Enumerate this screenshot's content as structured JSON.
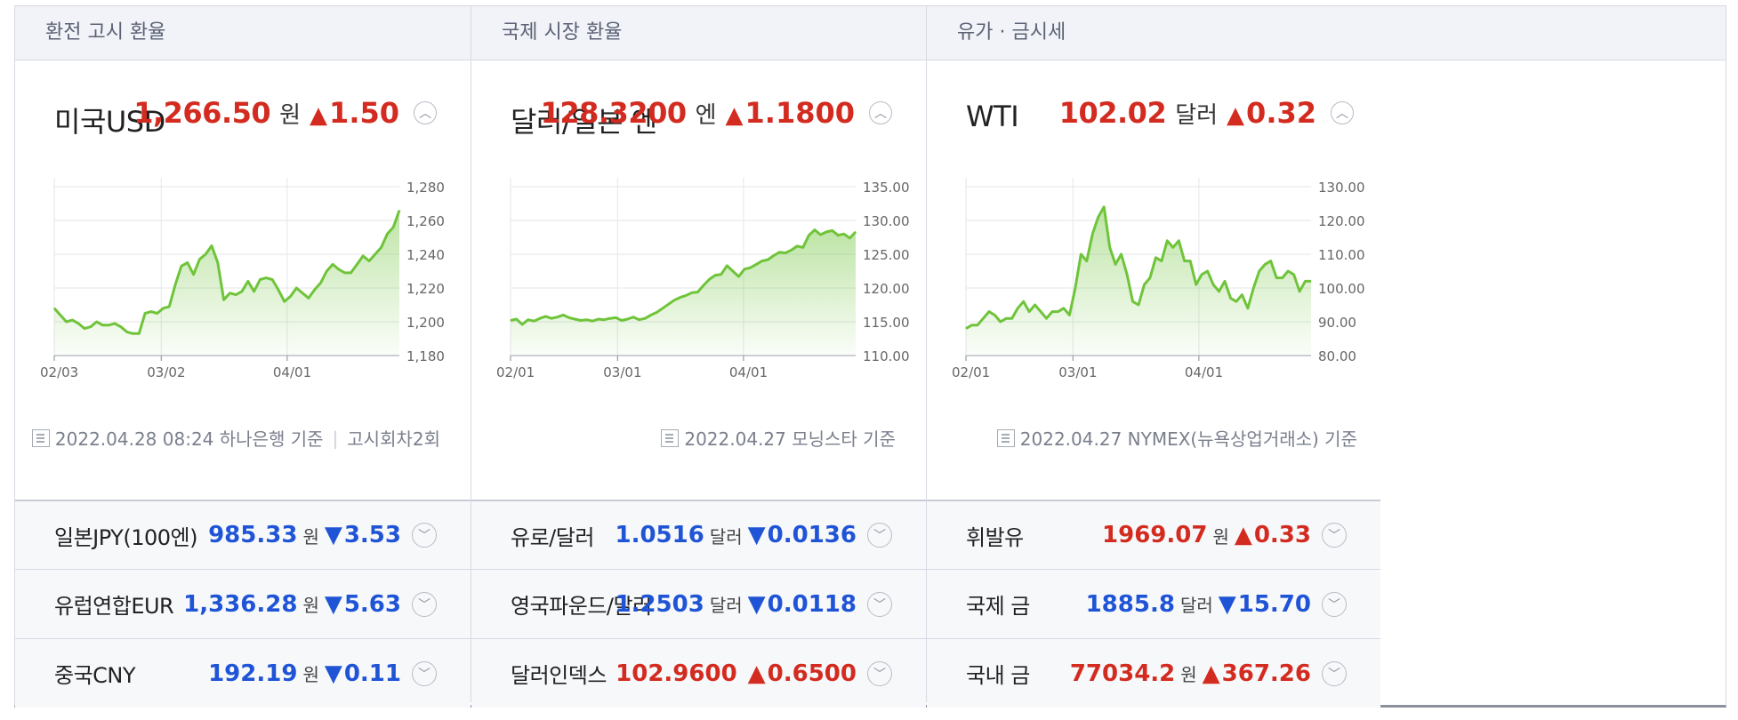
{
  "colors": {
    "up": "#d32b1f",
    "down": "#1f54d6",
    "line": "#6fc43a"
  },
  "columns": [
    {
      "header": "환전 고시 환율",
      "main": {
        "name": "미국USD",
        "value": "1,266.50",
        "unit": "원",
        "dir": "up",
        "change": "1.50"
      },
      "footnote": {
        "text": "2022.04.28 08:24 하나은행 기준",
        "extra": "고시회차2회"
      },
      "rows": [
        {
          "name": "일본JPY(100엔)",
          "value": "985.33",
          "unit": "원",
          "dir": "down",
          "change": "3.53"
        },
        {
          "name": "유럽연합EUR",
          "value": "1,336.28",
          "unit": "원",
          "dir": "down",
          "change": "5.63"
        },
        {
          "name": "중국CNY",
          "value": "192.19",
          "unit": "원",
          "dir": "down",
          "change": "0.11"
        }
      ]
    },
    {
      "header": "국제 시장 환율",
      "main": {
        "name": "달러/일본 엔",
        "value": "128.3200",
        "unit": "엔",
        "dir": "up",
        "change": "1.1800"
      },
      "footnote": {
        "text": "2022.04.27 모닝스타 기준",
        "extra": ""
      },
      "rows": [
        {
          "name": "유로/달러",
          "value": "1.0516",
          "unit": "달러",
          "dir": "down",
          "change": "0.0136"
        },
        {
          "name": "영국파운드/달러",
          "value": "1.2503",
          "unit": "달러",
          "dir": "down",
          "change": "0.0118"
        },
        {
          "name": "달러인덱스",
          "value": "102.9600",
          "unit": "",
          "dir": "up",
          "change": "0.6500"
        }
      ]
    },
    {
      "header": "유가 · 금시세",
      "main": {
        "name": "WTI",
        "value": "102.02",
        "unit": "달러",
        "dir": "up",
        "change": "0.32"
      },
      "footnote": {
        "text": "2022.04.27 NYMEX(뉴욕상업거래소) 기준",
        "extra": ""
      },
      "rows": [
        {
          "name": "휘발유",
          "value": "1969.07",
          "unit": "원",
          "dir": "up",
          "change": "0.33"
        },
        {
          "name": "국제 금",
          "value": "1885.8",
          "unit": "달러",
          "dir": "down",
          "change": "15.70"
        },
        {
          "name": "국내 금",
          "value": "77034.2",
          "unit": "원",
          "dir": "up",
          "change": "367.26"
        }
      ]
    }
  ],
  "chart_data": [
    {
      "type": "area",
      "x_ticks": [
        "02/03",
        "03/02",
        "04/01"
      ],
      "y_ticks": [
        "1,280",
        "1,260",
        "1,240",
        "1,220",
        "1,200",
        "1,180"
      ],
      "ylim": [
        1180,
        1280
      ],
      "values": [
        1208,
        1204,
        1200,
        1201,
        1199,
        1196,
        1197,
        1200,
        1198,
        1198,
        1199,
        1197,
        1194,
        1193,
        1193,
        1205,
        1206,
        1205,
        1208,
        1209,
        1222,
        1233,
        1235,
        1228,
        1237,
        1240,
        1245,
        1235,
        1213,
        1217,
        1216,
        1218,
        1224,
        1218,
        1225,
        1226,
        1225,
        1219,
        1212,
        1215,
        1220,
        1217,
        1214,
        1219,
        1223,
        1230,
        1234,
        1231,
        1229,
        1229,
        1234,
        1239,
        1236,
        1240,
        1244,
        1252,
        1256,
        1266
      ]
    },
    {
      "type": "area",
      "x_ticks": [
        "02/01",
        "03/01",
        "04/01"
      ],
      "y_ticks": [
        "135.00",
        "130.00",
        "125.00",
        "120.00",
        "115.00",
        "110.00"
      ],
      "ylim": [
        110,
        135
      ],
      "values": [
        115.2,
        115.4,
        114.6,
        115.3,
        115.1,
        115.5,
        115.8,
        115.5,
        115.7,
        116.0,
        115.6,
        115.4,
        115.2,
        115.3,
        115.1,
        115.4,
        115.3,
        115.5,
        115.6,
        115.2,
        115.4,
        115.7,
        115.3,
        115.5,
        116.0,
        116.4,
        117.0,
        117.6,
        118.2,
        118.6,
        118.9,
        119.3,
        119.4,
        120.4,
        121.3,
        121.9,
        122.0,
        123.3,
        122.5,
        121.7,
        122.8,
        123.0,
        123.5,
        124.0,
        124.2,
        124.8,
        125.3,
        125.2,
        125.6,
        126.2,
        126.0,
        127.8,
        128.6,
        127.9,
        128.3,
        128.5,
        127.8,
        128.0,
        127.4,
        128.3
      ]
    },
    {
      "type": "area",
      "x_ticks": [
        "02/01",
        "03/01",
        "04/01"
      ],
      "y_ticks": [
        "130.00",
        "120.00",
        "110.00",
        "100.00",
        "90.00",
        "80.00"
      ],
      "ylim": [
        80,
        130
      ],
      "values": [
        88,
        89,
        89,
        91,
        93,
        92,
        90,
        91,
        91,
        94,
        96,
        93,
        95,
        93,
        91,
        93,
        93,
        94,
        92,
        100,
        110,
        108,
        116,
        121,
        124,
        112,
        107,
        110,
        104,
        96,
        95,
        101,
        103,
        109,
        108,
        114,
        112,
        114,
        108,
        108,
        101,
        104,
        105,
        101,
        99,
        102,
        97,
        96,
        98,
        94,
        100,
        105,
        107,
        108,
        103,
        103,
        105,
        104,
        99,
        102,
        102
      ]
    }
  ]
}
